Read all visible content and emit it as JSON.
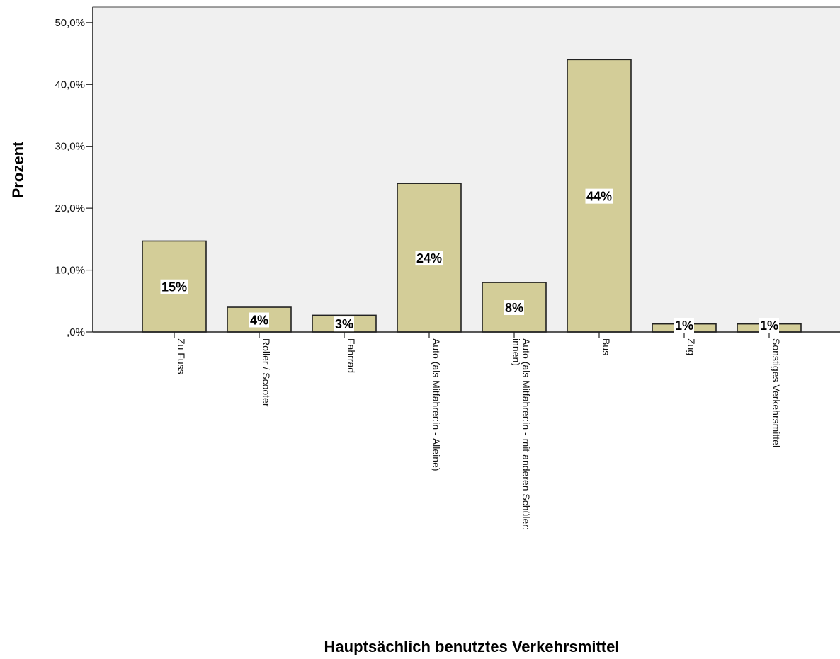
{
  "chart_data": {
    "type": "bar",
    "categories": [
      "Zu Fuss",
      "Roller / Scooter",
      "Fahrrad",
      "Auto (als Mitfahrer:in - Alleine)",
      [
        "Auto (als Mitfahrer:in - mit anderen Schüler:",
        "innen)"
      ],
      "Bus",
      "Zug",
      "Sonstiges Verkehrsmittel"
    ],
    "values": [
      14.7,
      4.0,
      2.7,
      24.0,
      8.0,
      44.0,
      1.3,
      1.3
    ],
    "data_labels": [
      "15%",
      "4%",
      "3%",
      "24%",
      "8%",
      "44%",
      "1%",
      "1%"
    ],
    "xlabel": "Hauptsächlich benutztes Verkehrsmittel",
    "ylabel": "Prozent",
    "yticks": [
      ",0%",
      "10,0%",
      "20,0%",
      "30,0%",
      "40,0%",
      "50,0%"
    ],
    "ytick_values": [
      0,
      10,
      20,
      30,
      40,
      50
    ],
    "ylim": [
      0,
      52.5
    ],
    "grid": false,
    "legend": "none",
    "colors": {
      "bar": "#d3cd98",
      "plot_background": "#f0f0f0"
    }
  }
}
